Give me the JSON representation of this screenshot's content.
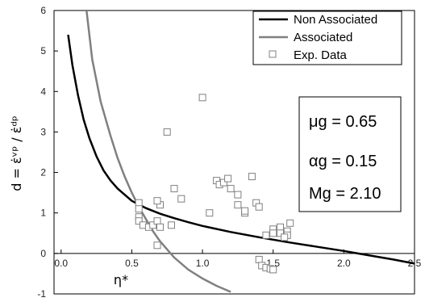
{
  "chart_data": {
    "type": "scatter",
    "xlabel": "η*",
    "ylabel": "d = ε̇ᵛᵖ / ε̇ᵈᵖ",
    "xlim": [
      -0.05,
      2.5
    ],
    "ylim": [
      -1,
      6
    ],
    "x_ticks": [
      "0.0",
      "0.5",
      "1.0",
      "1.5",
      "2.0",
      "2.5"
    ],
    "y_ticks": [
      "-1",
      "0",
      "1",
      "2",
      "3",
      "4",
      "5",
      "6"
    ],
    "legend_placement": "top-right",
    "legend": [
      "Non Associated",
      "Associated",
      "Exp. Data"
    ],
    "series": [
      {
        "name": "Non Associated",
        "kind": "line",
        "color": "#000000",
        "points": [
          [
            0.05,
            5.4
          ],
          [
            0.08,
            4.65
          ],
          [
            0.12,
            3.9
          ],
          [
            0.16,
            3.3
          ],
          [
            0.2,
            2.85
          ],
          [
            0.25,
            2.4
          ],
          [
            0.3,
            2.05
          ],
          [
            0.35,
            1.8
          ],
          [
            0.4,
            1.6
          ],
          [
            0.5,
            1.3
          ],
          [
            0.6,
            1.12
          ],
          [
            0.7,
            0.98
          ],
          [
            0.8,
            0.87
          ],
          [
            0.9,
            0.77
          ],
          [
            1.0,
            0.68
          ],
          [
            1.2,
            0.53
          ],
          [
            1.4,
            0.4
          ],
          [
            1.6,
            0.28
          ],
          [
            1.8,
            0.17
          ],
          [
            2.0,
            0.06
          ],
          [
            2.1,
            0.0
          ],
          [
            2.2,
            -0.06
          ],
          [
            2.35,
            -0.15
          ],
          [
            2.5,
            -0.25
          ]
        ]
      },
      {
        "name": "Associated",
        "kind": "line",
        "color": "#808080",
        "points": [
          [
            0.18,
            6.0
          ],
          [
            0.22,
            4.8
          ],
          [
            0.28,
            3.75
          ],
          [
            0.35,
            2.9
          ],
          [
            0.4,
            2.35
          ],
          [
            0.45,
            1.9
          ],
          [
            0.5,
            1.5
          ],
          [
            0.55,
            1.15
          ],
          [
            0.6,
            0.85
          ],
          [
            0.65,
            0.55
          ],
          [
            0.7,
            0.3
          ],
          [
            0.8,
            -0.1
          ],
          [
            0.9,
            -0.4
          ],
          [
            1.0,
            -0.62
          ],
          [
            1.1,
            -0.8
          ],
          [
            1.2,
            -0.95
          ]
        ]
      },
      {
        "name": "Exp. Data",
        "kind": "scatter",
        "color": "#808080",
        "points": [
          [
            0.55,
            1.25
          ],
          [
            0.55,
            1.1
          ],
          [
            0.55,
            0.9
          ],
          [
            0.55,
            0.8
          ],
          [
            0.58,
            0.7
          ],
          [
            0.62,
            0.65
          ],
          [
            0.65,
            0.7
          ],
          [
            0.68,
            0.8
          ],
          [
            0.7,
            0.65
          ],
          [
            0.7,
            1.2
          ],
          [
            0.68,
            1.3
          ],
          [
            0.68,
            0.2
          ],
          [
            0.75,
            3.0
          ],
          [
            0.8,
            1.6
          ],
          [
            0.85,
            1.35
          ],
          [
            0.78,
            0.7
          ],
          [
            1.0,
            3.85
          ],
          [
            1.05,
            1.0
          ],
          [
            1.1,
            1.8
          ],
          [
            1.12,
            1.7
          ],
          [
            1.15,
            1.75
          ],
          [
            1.18,
            1.85
          ],
          [
            1.2,
            1.6
          ],
          [
            1.25,
            1.45
          ],
          [
            1.25,
            1.2
          ],
          [
            1.3,
            1.0
          ],
          [
            1.3,
            1.05
          ],
          [
            1.35,
            1.9
          ],
          [
            1.38,
            1.25
          ],
          [
            1.4,
            1.15
          ],
          [
            1.4,
            -0.15
          ],
          [
            1.42,
            -0.3
          ],
          [
            1.45,
            -0.35
          ],
          [
            1.48,
            -0.38
          ],
          [
            1.5,
            -0.4
          ],
          [
            1.45,
            0.45
          ],
          [
            1.5,
            0.6
          ],
          [
            1.5,
            0.5
          ],
          [
            1.55,
            0.65
          ],
          [
            1.55,
            0.5
          ],
          [
            1.6,
            0.55
          ],
          [
            1.6,
            0.45
          ],
          [
            1.62,
            0.75
          ],
          [
            1.58,
            0.4
          ]
        ]
      }
    ],
    "annotations": [
      {
        "label": "μg",
        "value": "0.65"
      },
      {
        "label": "αg",
        "value": "0.15"
      },
      {
        "label": "Mg",
        "value": "2.10"
      }
    ]
  }
}
